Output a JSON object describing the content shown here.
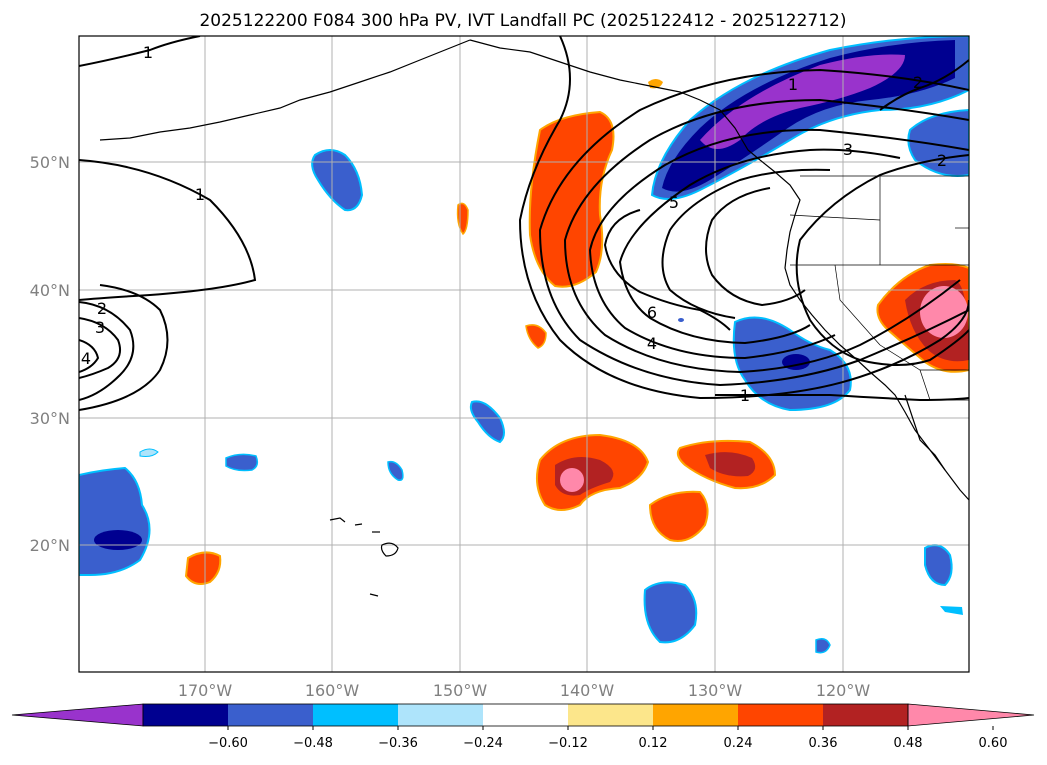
{
  "title": "2025122200 F084 300 hPa PV, IVT Landfall PC (2025122412 - 2025122712)",
  "lat_labels": [
    "50°N",
    "40°N",
    "30°N",
    "20°N"
  ],
  "lon_labels": [
    "170°W",
    "160°W",
    "150°W",
    "140°W",
    "130°W",
    "120°W"
  ],
  "colorbar": {
    "ticks": [
      "−0.60",
      "−0.48",
      "−0.36",
      "−0.24",
      "−0.12",
      "0.12",
      "0.24",
      "0.36",
      "0.48",
      "0.60"
    ],
    "colors": [
      "#9933cc",
      "#000090",
      "#3a5fcd",
      "#00bfff",
      "#aee4fb",
      "#ffffff",
      "#fce68b",
      "#ffa500",
      "#ff4500",
      "#b22222",
      "#ff88aa"
    ]
  },
  "contour_labels": [
    "1",
    "1",
    "2",
    "3",
    "4",
    "1",
    "2",
    "3",
    "2",
    "5",
    "6",
    "4",
    "1"
  ]
}
